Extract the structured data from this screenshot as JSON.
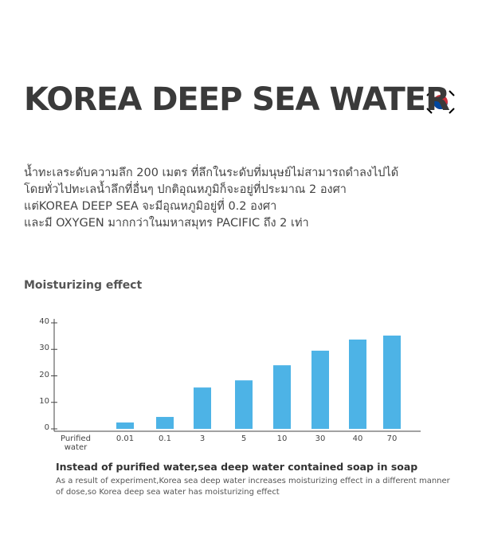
{
  "header": {
    "title": "KOREA DEEP SEA WATER"
  },
  "description": {
    "lines": [
      "น้ำทะเลระดับความลึก 200 เมตร ที่ลึกในระดับที่มนุษย์ไม่สามารถดำลงไปได้",
      "โดยทั่วไปทะเลน้ำลึกที่อื่นๆ ปกติอุณหภูมิก็จะอยู่ที่ประมาณ 2 องศา",
      "แต่KOREA DEEP SEA จะมีอุณหภูมิอยู่ที่ 0.2 องศา",
      "และมี OXYGEN มากกว่าในมหาสมุทร PACIFIC ถึง 2 เท่า"
    ]
  },
  "chart_data": {
    "type": "bar",
    "title": "Moisturizing effect",
    "categories": [
      "Purified water",
      "0.01",
      "0.1",
      "3",
      "5",
      "10",
      "30",
      "40",
      "70"
    ],
    "values": [
      0,
      2.4,
      4.5,
      15.6,
      18.3,
      24,
      29.5,
      33.7,
      35.2
    ],
    "color": "#4db3e6",
    "ylim": [
      0,
      40
    ],
    "yticks": [
      0,
      10,
      20,
      30,
      40
    ],
    "caption": "Instead of purified water,sea deep water contained soap in soap",
    "note_lines": [
      "As a result of experiment,Korea sea deep water increases moisturizing effect in a different manner",
      "of dose,so Korea deep sea water has moisturizing effect"
    ]
  }
}
